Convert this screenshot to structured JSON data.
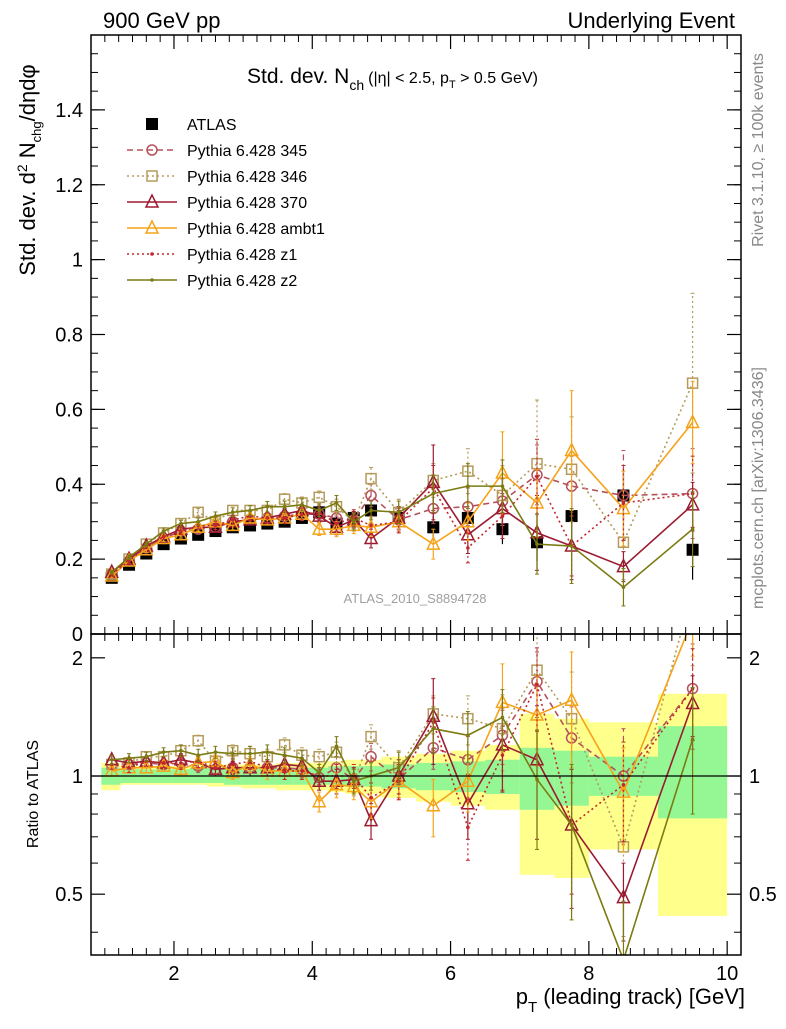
{
  "header": {
    "left": "900 GeV pp",
    "right": "Underlying Event"
  },
  "side_labels": {
    "rivet": "Rivet 3.1.10, ≥ 100k events",
    "mcplots": "mcplots.cern.ch [arXiv:1306.3436]"
  },
  "chart_data": [
    {
      "type": "line",
      "panel": "main",
      "title": {
        "main": "Std. dev. N",
        "main_sub": "ch",
        "cond_a": "(|η| < 2.5, p",
        "cond_sub": "T",
        "cond_b": " > 0.5 GeV)"
      },
      "ylabel": {
        "a": "Std. dev. d",
        "sup": "2",
        "b": " N",
        "sub": "chg",
        "c": "/dηdφ"
      },
      "xlim": [
        0.8,
        10.2
      ],
      "ylim": [
        0,
        1.6
      ],
      "yticks": [
        "0",
        "0.2",
        "0.4",
        "0.6",
        "0.8",
        "1",
        "1.2",
        "1.4"
      ],
      "yticks_values": [
        0,
        0.2,
        0.4,
        0.6,
        0.8,
        1.0,
        1.2,
        1.4
      ],
      "watermark": "ATLAS_2010_S8894728",
      "legend_position": "top-left",
      "x": [
        1.1,
        1.35,
        1.6,
        1.85,
        2.1,
        2.35,
        2.6,
        2.85,
        3.1,
        3.35,
        3.6,
        3.85,
        4.1,
        4.35,
        4.6,
        4.85,
        5.25,
        5.75,
        6.25,
        6.75,
        7.25,
        7.75,
        8.5,
        9.5
      ],
      "series": [
        {
          "name": "ATLAS",
          "style": "data",
          "color": "#000000",
          "values": [
            0.15,
            0.185,
            0.215,
            0.24,
            0.255,
            0.265,
            0.275,
            0.285,
            0.29,
            0.295,
            0.3,
            0.31,
            0.325,
            0.295,
            0.31,
            0.33,
            0.31,
            0.285,
            0.31,
            0.28,
            0.245,
            0.315,
            0.37,
            0.225
          ],
          "errors": [
            0.004,
            0.005,
            0.006,
            0.007,
            0.008,
            0.009,
            0.01,
            0.01,
            0.012,
            0.013,
            0.014,
            0.015,
            0.016,
            0.018,
            0.02,
            0.022,
            0.025,
            0.03,
            0.035,
            0.04,
            0.05,
            0.06,
            0.07,
            0.08
          ]
        },
        {
          "name": "Pythia 6.428 345",
          "style": "circle-dashed",
          "color": "#b5505a",
          "values": [
            0.16,
            0.195,
            0.23,
            0.255,
            0.275,
            0.28,
            0.285,
            0.3,
            0.305,
            0.31,
            0.315,
            0.32,
            0.32,
            0.31,
            0.305,
            0.37,
            0.305,
            0.335,
            0.34,
            0.355,
            0.425,
            0.395,
            0.37,
            0.375
          ],
          "errors": [
            0.005,
            0.006,
            0.007,
            0.008,
            0.009,
            0.01,
            0.011,
            0.012,
            0.013,
            0.014,
            0.015,
            0.016,
            0.017,
            0.02,
            0.022,
            0.03,
            0.03,
            0.04,
            0.05,
            0.06,
            0.08,
            0.08,
            0.12,
            0.12
          ]
        },
        {
          "name": "Pythia 6.428 346",
          "style": "square-dotted",
          "color": "#b59b5b",
          "values": [
            0.16,
            0.2,
            0.24,
            0.27,
            0.295,
            0.325,
            0.3,
            0.33,
            0.33,
            0.33,
            0.36,
            0.35,
            0.365,
            0.34,
            0.3,
            0.415,
            0.325,
            0.41,
            0.435,
            0.37,
            0.455,
            0.44,
            0.245,
            0.67
          ],
          "errors": [
            0.005,
            0.006,
            0.007,
            0.008,
            0.009,
            0.01,
            0.011,
            0.012,
            0.013,
            0.014,
            0.015,
            0.016,
            0.017,
            0.02,
            0.025,
            0.03,
            0.035,
            0.045,
            0.06,
            0.08,
            0.17,
            0.14,
            0.1,
            0.24
          ]
        },
        {
          "name": "Pythia 6.428 370",
          "style": "triangle-solid",
          "color": "#9b1b30",
          "values": [
            0.165,
            0.2,
            0.235,
            0.26,
            0.28,
            0.285,
            0.285,
            0.3,
            0.305,
            0.31,
            0.32,
            0.33,
            0.315,
            0.285,
            0.305,
            0.255,
            0.31,
            0.405,
            0.265,
            0.335,
            0.27,
            0.235,
            0.18,
            0.345
          ],
          "errors": [
            0.005,
            0.006,
            0.007,
            0.008,
            0.009,
            0.01,
            0.011,
            0.012,
            0.013,
            0.014,
            0.015,
            0.016,
            0.017,
            0.02,
            0.022,
            0.025,
            0.03,
            0.1,
            0.05,
            0.08,
            0.1,
            0.09,
            0.04,
            0.06
          ]
        },
        {
          "name": "Pythia 6.428 ambt1",
          "style": "triangle-solid",
          "color": "#f5a31a",
          "values": [
            0.155,
            0.195,
            0.225,
            0.255,
            0.265,
            0.285,
            0.3,
            0.29,
            0.31,
            0.305,
            0.31,
            0.32,
            0.28,
            0.28,
            0.29,
            0.285,
            0.3,
            0.24,
            0.3,
            0.43,
            0.35,
            0.49,
            0.335,
            0.565
          ],
          "errors": [
            0.005,
            0.006,
            0.007,
            0.008,
            0.009,
            0.01,
            0.011,
            0.012,
            0.013,
            0.014,
            0.015,
            0.016,
            0.017,
            0.02,
            0.022,
            0.025,
            0.03,
            0.04,
            0.05,
            0.11,
            0.09,
            0.16,
            0.1,
            0.11
          ]
        },
        {
          "name": "Pythia 6.428 z1",
          "style": "dot-dotted",
          "color": "#c1272d",
          "values": [
            0.16,
            0.195,
            0.235,
            0.26,
            0.275,
            0.29,
            0.29,
            0.305,
            0.315,
            0.31,
            0.31,
            0.32,
            0.325,
            0.295,
            0.31,
            0.29,
            0.3,
            0.39,
            0.23,
            0.315,
            0.42,
            0.235,
            0.35,
            0.375
          ],
          "errors": [
            0.005,
            0.006,
            0.007,
            0.008,
            0.009,
            0.01,
            0.011,
            0.012,
            0.013,
            0.014,
            0.015,
            0.016,
            0.017,
            0.02,
            0.022,
            0.025,
            0.03,
            0.06,
            0.04,
            0.06,
            0.1,
            0.08,
            0.1,
            0.1
          ]
        },
        {
          "name": "Pythia 6.428 z2",
          "style": "dot-solid",
          "color": "#7b7b12",
          "values": [
            0.165,
            0.205,
            0.24,
            0.275,
            0.295,
            0.3,
            0.315,
            0.325,
            0.33,
            0.34,
            0.34,
            0.345,
            0.33,
            0.35,
            0.3,
            0.33,
            0.325,
            0.375,
            0.395,
            0.395,
            0.24,
            0.235,
            0.125,
            0.28
          ],
          "errors": [
            0.005,
            0.006,
            0.007,
            0.008,
            0.009,
            0.01,
            0.011,
            0.012,
            0.013,
            0.014,
            0.015,
            0.016,
            0.017,
            0.02,
            0.022,
            0.025,
            0.03,
            0.05,
            0.06,
            0.07,
            0.08,
            0.1,
            0.05,
            0.1
          ]
        }
      ]
    },
    {
      "type": "line",
      "panel": "ratio",
      "ylabel": "Ratio to ATLAS",
      "xlabel": {
        "a": "p",
        "sub": "T",
        "b": " (leading track) [GeV]"
      },
      "xlim": [
        0.8,
        10.2
      ],
      "ylim": [
        0.35,
        2.3
      ],
      "xticks": [
        "2",
        "4",
        "6",
        "8",
        "10"
      ],
      "xticks_values": [
        2,
        4,
        6,
        8,
        10
      ],
      "yticks": [
        "0.5",
        "1",
        "2"
      ],
      "yticks_values": [
        0.5,
        1,
        2
      ],
      "reference_line": 1,
      "band_edges": [
        0.95,
        1.225,
        1.475,
        1.725,
        1.975,
        2.225,
        2.475,
        2.725,
        2.975,
        3.225,
        3.475,
        3.725,
        3.975,
        4.225,
        4.475,
        4.725,
        5.0,
        5.5,
        6.0,
        6.5,
        7.0,
        7.5,
        8.0,
        9.0,
        10.0
      ],
      "band_inner": [
        [
          0.95,
          1.05
        ],
        [
          0.96,
          1.04
        ],
        [
          0.96,
          1.04
        ],
        [
          0.96,
          1.04
        ],
        [
          0.96,
          1.04
        ],
        [
          0.96,
          1.05
        ],
        [
          0.96,
          1.05
        ],
        [
          0.95,
          1.05
        ],
        [
          0.95,
          1.05
        ],
        [
          0.95,
          1.05
        ],
        [
          0.95,
          1.05
        ],
        [
          0.95,
          1.05
        ],
        [
          0.95,
          1.05
        ],
        [
          0.95,
          1.06
        ],
        [
          0.94,
          1.06
        ],
        [
          0.94,
          1.06
        ],
        [
          0.93,
          1.07
        ],
        [
          0.92,
          1.08
        ],
        [
          0.91,
          1.09
        ],
        [
          0.9,
          1.1
        ],
        [
          0.82,
          1.18
        ],
        [
          0.84,
          1.16
        ],
        [
          0.89,
          1.12
        ],
        [
          0.78,
          1.34
        ]
      ],
      "band_outer": [
        [
          0.92,
          1.08
        ],
        [
          0.95,
          1.06
        ],
        [
          0.95,
          1.06
        ],
        [
          0.95,
          1.06
        ],
        [
          0.95,
          1.06
        ],
        [
          0.95,
          1.07
        ],
        [
          0.94,
          1.07
        ],
        [
          0.94,
          1.07
        ],
        [
          0.93,
          1.07
        ],
        [
          0.93,
          1.07
        ],
        [
          0.92,
          1.08
        ],
        [
          0.92,
          1.08
        ],
        [
          0.92,
          1.08
        ],
        [
          0.91,
          1.09
        ],
        [
          0.9,
          1.1
        ],
        [
          0.9,
          1.1
        ],
        [
          0.88,
          1.12
        ],
        [
          0.86,
          1.14
        ],
        [
          0.84,
          1.16
        ],
        [
          0.82,
          1.2
        ],
        [
          0.56,
          1.44
        ],
        [
          0.55,
          1.4
        ],
        [
          0.65,
          1.37
        ],
        [
          0.44,
          1.62
        ]
      ],
      "series": [
        {
          "name": "Pythia 6.428 345",
          "style": "circle-dashed",
          "color": "#b5505a",
          "values": [
            1.07,
            1.07,
            1.08,
            1.07,
            1.08,
            1.06,
            1.04,
            1.05,
            1.05,
            1.05,
            1.05,
            1.04,
            0.99,
            1.05,
            0.98,
            1.12,
            0.98,
            1.18,
            1.1,
            1.27,
            1.74,
            1.25,
            1.0,
            1.67
          ],
          "errors": [
            0.03,
            0.03,
            0.03,
            0.03,
            0.04,
            0.04,
            0.04,
            0.04,
            0.05,
            0.05,
            0.05,
            0.05,
            0.05,
            0.07,
            0.07,
            0.09,
            0.1,
            0.14,
            0.16,
            0.2,
            0.33,
            0.25,
            0.32,
            0.5
          ]
        },
        {
          "name": "Pythia 6.428 346",
          "style": "square-dotted",
          "color": "#b59b5b",
          "values": [
            1.07,
            1.08,
            1.12,
            1.12,
            1.16,
            1.23,
            1.09,
            1.16,
            1.14,
            1.12,
            1.2,
            1.13,
            1.12,
            1.15,
            0.97,
            1.26,
            1.05,
            1.44,
            1.4,
            1.32,
            1.86,
            1.4,
            0.66,
            2.98
          ],
          "errors": [
            0.03,
            0.03,
            0.03,
            0.03,
            0.04,
            0.04,
            0.04,
            0.04,
            0.05,
            0.05,
            0.05,
            0.05,
            0.05,
            0.07,
            0.08,
            0.09,
            0.11,
            0.16,
            0.2,
            0.29,
            0.69,
            0.44,
            0.27,
            1.07
          ]
        },
        {
          "name": "Pythia 6.428 370",
          "style": "triangle-solid",
          "color": "#9b1b30",
          "values": [
            1.1,
            1.08,
            1.09,
            1.08,
            1.1,
            1.08,
            1.04,
            1.05,
            1.05,
            1.05,
            1.07,
            1.06,
            0.97,
            0.97,
            0.98,
            0.77,
            1.0,
            1.42,
            0.85,
            1.2,
            1.1,
            0.75,
            0.49,
            1.53
          ],
          "errors": [
            0.03,
            0.03,
            0.03,
            0.03,
            0.04,
            0.04,
            0.04,
            0.04,
            0.05,
            0.05,
            0.05,
            0.05,
            0.05,
            0.07,
            0.07,
            0.08,
            0.1,
            0.35,
            0.16,
            0.29,
            0.41,
            0.29,
            0.11,
            0.27
          ]
        },
        {
          "name": "Pythia 6.428 ambt1",
          "style": "triangle-solid",
          "color": "#f5a31a",
          "values": [
            1.03,
            1.05,
            1.05,
            1.06,
            1.04,
            1.08,
            1.09,
            1.02,
            1.07,
            1.03,
            1.03,
            1.03,
            0.86,
            0.95,
            0.94,
            0.86,
            0.97,
            0.84,
            0.97,
            1.54,
            1.43,
            1.56,
            0.91,
            2.51
          ],
          "errors": [
            0.03,
            0.03,
            0.03,
            0.03,
            0.04,
            0.04,
            0.04,
            0.04,
            0.05,
            0.05,
            0.05,
            0.05,
            0.05,
            0.07,
            0.07,
            0.08,
            0.1,
            0.14,
            0.16,
            0.39,
            0.37,
            0.51,
            0.27,
            0.49
          ]
        },
        {
          "name": "Pythia 6.428 z1",
          "style": "dot-dotted",
          "color": "#c1272d",
          "values": [
            1.07,
            1.05,
            1.09,
            1.08,
            1.08,
            1.09,
            1.05,
            1.07,
            1.09,
            1.05,
            1.03,
            1.03,
            1.0,
            1.0,
            1.0,
            0.88,
            0.97,
            1.37,
            0.74,
            1.13,
            1.71,
            0.75,
            0.95,
            1.67
          ],
          "errors": [
            0.03,
            0.03,
            0.03,
            0.03,
            0.04,
            0.04,
            0.04,
            0.04,
            0.05,
            0.05,
            0.05,
            0.05,
            0.05,
            0.07,
            0.07,
            0.08,
            0.1,
            0.21,
            0.13,
            0.21,
            0.41,
            0.25,
            0.27,
            0.44
          ]
        },
        {
          "name": "Pythia 6.428 z2",
          "style": "dot-solid",
          "color": "#7b7b12",
          "values": [
            1.1,
            1.11,
            1.12,
            1.15,
            1.16,
            1.13,
            1.15,
            1.14,
            1.14,
            1.15,
            1.13,
            1.11,
            1.02,
            1.19,
            0.97,
            1.0,
            1.05,
            1.32,
            1.27,
            1.41,
            0.98,
            0.75,
            0.34,
            1.24
          ],
          "errors": [
            0.03,
            0.03,
            0.03,
            0.03,
            0.04,
            0.04,
            0.04,
            0.04,
            0.05,
            0.05,
            0.05,
            0.05,
            0.05,
            0.07,
            0.07,
            0.08,
            0.1,
            0.18,
            0.19,
            0.25,
            0.33,
            0.32,
            0.14,
            0.44
          ]
        }
      ]
    }
  ]
}
